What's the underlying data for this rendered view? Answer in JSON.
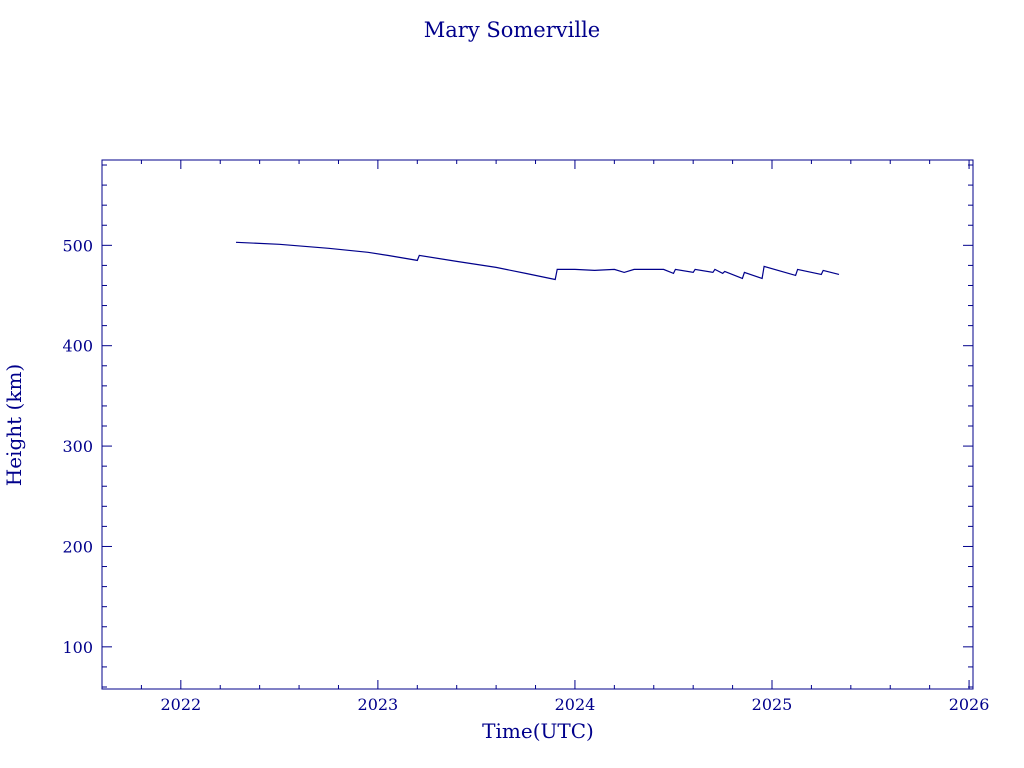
{
  "colors": {
    "ink": "#00008B",
    "background": "#FFFFFF"
  },
  "chart_data": {
    "type": "line",
    "title": "Mary Somerville",
    "xlabel": "Time(UTC)",
    "ylabel": "Height (km)",
    "xlim": [
      2021.6,
      2026.02
    ],
    "ylim": [
      58,
      585
    ],
    "x_ticks": [
      "2022",
      "2023",
      "2024",
      "2025",
      "2026"
    ],
    "y_ticks": [
      "100",
      "200",
      "300",
      "400",
      "500"
    ],
    "grid": false,
    "series": [
      {
        "x": [
          2022.28,
          2022.5,
          2022.75,
          2022.95,
          2023.05,
          2023.2,
          2023.21,
          2023.4,
          2023.6,
          2023.75,
          2023.9,
          2023.91,
          2024.0,
          2024.1,
          2024.2,
          2024.25,
          2024.3,
          2024.45,
          2024.5,
          2024.51,
          2024.6,
          2024.61,
          2024.7,
          2024.71,
          2024.75,
          2024.76,
          2024.85,
          2024.86,
          2024.95,
          2024.96,
          2025.12,
          2025.13,
          2025.25,
          2025.26,
          2025.34
        ],
        "y": [
          503,
          501,
          497,
          493,
          490,
          485,
          490,
          484,
          478,
          472,
          466,
          476,
          476,
          475,
          476,
          473,
          476,
          476,
          472,
          476,
          473,
          476,
          473,
          476,
          472,
          474,
          467,
          473,
          467,
          479,
          470,
          476,
          471,
          475,
          471
        ]
      }
    ]
  }
}
